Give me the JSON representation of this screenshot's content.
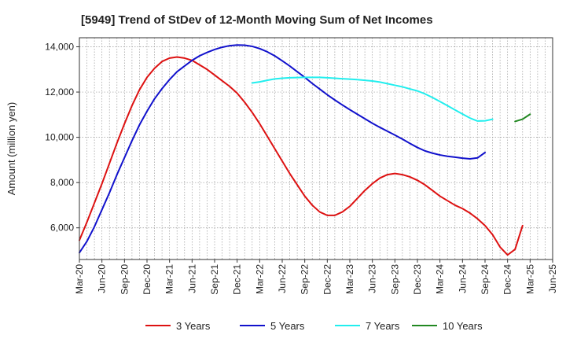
{
  "chart_data": {
    "type": "line",
    "title": "[5949]  Trend of StDev of 12-Month Moving Sum of Net Incomes",
    "xlabel": "",
    "ylabel": "Amount (million yen)",
    "ylim": [
      4600,
      14400
    ],
    "yticks": [
      6000,
      8000,
      10000,
      12000,
      14000
    ],
    "ytick_labels": [
      "6,000",
      "8,000",
      "10,000",
      "12,000",
      "14,000"
    ],
    "xtick_labels": [
      "Mar-20",
      "Jun-20",
      "Sep-20",
      "Dec-20",
      "Mar-21",
      "Jun-21",
      "Sep-21",
      "Dec-21",
      "Mar-22",
      "Jun-22",
      "Sep-22",
      "Dec-22",
      "Mar-23",
      "Jun-23",
      "Sep-23",
      "Dec-23",
      "Mar-24",
      "Jun-24",
      "Sep-24",
      "Dec-24",
      "Mar-25",
      "Jun-25"
    ],
    "x_dates": [
      "2020-03",
      "2020-04",
      "2020-05",
      "2020-06",
      "2020-07",
      "2020-08",
      "2020-09",
      "2020-10",
      "2020-11",
      "2020-12",
      "2021-01",
      "2021-02",
      "2021-03",
      "2021-04",
      "2021-05",
      "2021-06",
      "2021-07",
      "2021-08",
      "2021-09",
      "2021-10",
      "2021-11",
      "2021-12",
      "2022-01",
      "2022-02",
      "2022-03",
      "2022-04",
      "2022-05",
      "2022-06",
      "2022-07",
      "2022-08",
      "2022-09",
      "2022-10",
      "2022-11",
      "2022-12",
      "2023-01",
      "2023-02",
      "2023-03",
      "2023-04",
      "2023-05",
      "2023-06",
      "2023-07",
      "2023-08",
      "2023-09",
      "2023-10",
      "2023-11",
      "2023-12",
      "2024-01",
      "2024-02",
      "2024-03",
      "2024-04",
      "2024-05",
      "2024-06",
      "2024-07",
      "2024-08",
      "2024-09",
      "2024-10",
      "2024-11",
      "2024-12",
      "2025-01",
      "2025-02",
      "2025-03"
    ],
    "grid": true,
    "legend_position": "bottom",
    "series": [
      {
        "name": "3 Years",
        "color": "#dd1111",
        "start": "2020-03",
        "values": [
          5450,
          6250,
          7100,
          7950,
          8850,
          9750,
          10600,
          11400,
          12100,
          12650,
          13050,
          13350,
          13500,
          13550,
          13500,
          13400,
          13200,
          13000,
          12750,
          12500,
          12250,
          11950,
          11550,
          11100,
          10600,
          10050,
          9500,
          8950,
          8400,
          7900,
          7400,
          7000,
          6700,
          6550,
          6550,
          6700,
          6950,
          7300,
          7650,
          7950,
          8200,
          8350,
          8400,
          8350,
          8250,
          8100,
          7900,
          7650,
          7400,
          7200,
          7000,
          6850,
          6650,
          6400,
          6100,
          5700,
          5150,
          4800,
          5050,
          6100
        ]
      },
      {
        "name": "5 Years",
        "color": "#1111cc",
        "start": "2020-03",
        "values": [
          4900,
          5400,
          6050,
          6800,
          7550,
          8350,
          9100,
          9850,
          10550,
          11150,
          11700,
          12150,
          12550,
          12900,
          13150,
          13400,
          13600,
          13750,
          13880,
          13980,
          14050,
          14080,
          14070,
          14020,
          13920,
          13780,
          13600,
          13380,
          13150,
          12900,
          12650,
          12380,
          12130,
          11880,
          11650,
          11430,
          11220,
          11020,
          10820,
          10620,
          10440,
          10270,
          10100,
          9920,
          9730,
          9550,
          9400,
          9300,
          9220,
          9160,
          9120,
          9080,
          9050,
          9090,
          9330
        ]
      },
      {
        "name": "7 Years",
        "color": "#22eeee",
        "start": "2022-02",
        "values": [
          12400,
          12450,
          12520,
          12580,
          12610,
          12630,
          12640,
          12650,
          12650,
          12650,
          12630,
          12610,
          12590,
          12570,
          12550,
          12520,
          12490,
          12440,
          12370,
          12300,
          12230,
          12140,
          12050,
          11920,
          11760,
          11580,
          11400,
          11210,
          11030,
          10850,
          10720,
          10730,
          10800
        ]
      },
      {
        "name": "10 Years",
        "color": "#228822",
        "start": "2025-01",
        "values": [
          10700,
          10800,
          11020
        ]
      }
    ]
  }
}
